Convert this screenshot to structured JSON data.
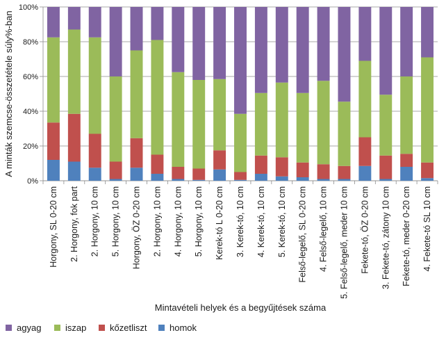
{
  "chart_data": {
    "type": "bar",
    "stacked": true,
    "percent_stacked": true,
    "title": "",
    "xlabel": "Mintavételi helyek és a begyűjtések száma",
    "ylabel": "A minták szemcse-összetétele súly%-ban",
    "ylim": [
      0,
      100
    ],
    "yticks": [
      "0%",
      "20%",
      "40%",
      "60%",
      "80%",
      "100%"
    ],
    "grid": true,
    "legend_position": "bottom-left",
    "categories": [
      "Horgony, SL 0-20 cm",
      "2. Horgony, fok part",
      "2. Horgony, 10 cm",
      "5. Horgony, 10 cm",
      "Horgony, ÖZ 0-20 cm",
      "2. Horgony, 10 cm",
      "4. Horgony, 10 cm",
      "5. Horgony, 10 cm",
      "Kerek-tó L 0-20 cm",
      "3. Kerek-tó, 10 cm",
      "4. Kerek-tó, 10 cm",
      "5. Kerek-tó, 10 cm",
      "Felső-legelő, SL 0-20 cm",
      "4. Felső-legelő, 10 cm",
      "5. Felső-legelő, meder 10 cm",
      "Fekete-tó, ÖZ 0-20 cm",
      "3. Fekete-tó, zátony 10 cm",
      "Fekete-tó, meder 0-20 cm",
      "4. Fekete-tó SL 10 cm"
    ],
    "series": [
      {
        "name": "homok",
        "color": "#4f81bd",
        "values": [
          12,
          11,
          7.5,
          1,
          7.5,
          4,
          1,
          0.5,
          6.5,
          0.5,
          4,
          2.5,
          2,
          1,
          1,
          8.5,
          1,
          8,
          1.5
        ]
      },
      {
        "name": "kőzetliszt",
        "color": "#c0504d",
        "values": [
          21.5,
          27.5,
          19.5,
          10,
          17,
          11,
          7,
          6.5,
          11,
          4.5,
          10.5,
          11,
          8.5,
          8.5,
          7.5,
          16.5,
          13.5,
          7.5,
          9
        ]
      },
      {
        "name": "iszap",
        "color": "#9bbb59",
        "values": [
          49,
          48.5,
          55.5,
          49,
          50.5,
          66,
          54.5,
          51,
          41,
          33.5,
          36,
          43,
          40,
          48,
          37,
          44,
          35,
          44.5,
          60.5
        ]
      },
      {
        "name": "agyag",
        "color": "#8064a2",
        "values": [
          17.5,
          13,
          17.5,
          40,
          25,
          19,
          37.5,
          42,
          41.5,
          61.5,
          49.5,
          43.5,
          49.5,
          42.5,
          54.5,
          31,
          50.5,
          40,
          29
        ]
      }
    ],
    "legend": [
      {
        "name": "agyag",
        "color": "#8064a2"
      },
      {
        "name": "iszap",
        "color": "#9bbb59"
      },
      {
        "name": "kőzetliszt",
        "color": "#c0504d"
      },
      {
        "name": "homok",
        "color": "#4f81bd"
      }
    ]
  }
}
